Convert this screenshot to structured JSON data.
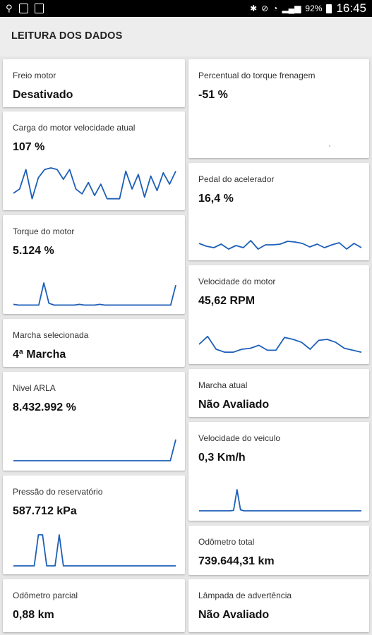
{
  "status_bar": {
    "battery": "92%",
    "time": "16:45"
  },
  "header": {
    "title": "LEITURA DOS DADOS"
  },
  "left_cards": [
    {
      "label": "Freio motor",
      "value": "Desativado"
    },
    {
      "label": "Carga do motor velocidade atual",
      "value": "107 %"
    },
    {
      "label": "Torque do motor",
      "value": "5.124 %"
    },
    {
      "label": "Marcha selecionada",
      "value": "4ª Marcha"
    },
    {
      "label": "Nivel ARLA",
      "value": "8.432.992 %"
    },
    {
      "label": "Pressão do reservatório",
      "value": "587.712 kPa"
    },
    {
      "label": "Odômetro parcial",
      "value": "0,88 km"
    }
  ],
  "right_cards": [
    {
      "label": "Percentual do torque frenagem",
      "value": "-51 %"
    },
    {
      "label": "Pedal do acelerador",
      "value": "16,4 %"
    },
    {
      "label": "Velocidade do motor",
      "value": "45,62 RPM"
    },
    {
      "label": "Marcha atual",
      "value": "Não Avaliado"
    },
    {
      "label": "Velocidade do veiculo",
      "value": "0,3 Km/h"
    },
    {
      "label": "Odômetro total",
      "value": "739.644,31 km"
    },
    {
      "label": "Lâmpada de advertência",
      "value": "Não Avaliado"
    }
  ],
  "colors": {
    "sparkline": "#1d5fb8",
    "appbar": "#ededed",
    "statusbar": "#000000"
  },
  "sparklines": {
    "carga_motor": [
      0.22,
      0.35,
      0.95,
      0.05,
      0.7,
      0.95,
      1.0,
      0.95,
      0.65,
      0.95,
      0.35,
      0.2,
      0.55,
      0.15,
      0.5,
      0.05,
      0.05,
      0.05,
      0.9,
      0.35,
      0.8,
      0.1,
      0.75,
      0.3,
      0.85,
      0.5,
      0.9
    ],
    "torque_motor": [
      0.05,
      0.02,
      0.02,
      0.02,
      0.02,
      0.02,
      1.0,
      0.1,
      0.02,
      0.02,
      0.02,
      0.02,
      0.02,
      0.05,
      0.02,
      0.02,
      0.02,
      0.05,
      0.02,
      0.02,
      0.02,
      0.02,
      0.02,
      0.02,
      0.02,
      0.02,
      0.02,
      0.02,
      0.02,
      0.02,
      0.02,
      0.02,
      0.9
    ],
    "nivel_arla": [
      0,
      0,
      0,
      0,
      0,
      0,
      0,
      0,
      0,
      0,
      0,
      0,
      0,
      0,
      0,
      0,
      0,
      0,
      0,
      0,
      0,
      0,
      0,
      0,
      0,
      0,
      0,
      0,
      0,
      0,
      1
    ],
    "pressao_reservatorio": [
      0,
      0,
      0,
      0,
      0,
      0,
      1,
      1,
      0,
      0,
      0,
      1,
      0,
      0,
      0,
      0,
      0,
      0,
      0,
      0,
      0,
      0,
      0,
      0,
      0,
      0,
      0,
      0,
      0,
      0,
      0,
      0,
      0,
      0,
      0,
      0,
      0,
      0,
      0,
      0
    ],
    "pedal_acelerador": [
      0.6,
      0.4,
      0.3,
      0.55,
      0.2,
      0.45,
      0.3,
      0.8,
      0.2,
      0.5,
      0.5,
      0.55,
      0.75,
      0.7,
      0.6,
      0.35,
      0.55,
      0.3,
      0.5,
      0.65,
      0.2,
      0.6,
      0.3
    ],
    "velocidade_motor": [
      0.5,
      0.9,
      0.25,
      0.1,
      0.1,
      0.25,
      0.3,
      0.45,
      0.2,
      0.2,
      0.85,
      0.75,
      0.6,
      0.25,
      0.7,
      0.75,
      0.6,
      0.3,
      0.2,
      0.1
    ],
    "velocidade_veiculo": [
      0,
      0,
      0,
      0,
      0,
      0,
      0,
      0,
      0,
      0,
      0.02,
      1,
      0.05,
      0,
      0,
      0,
      0,
      0,
      0,
      0,
      0,
      0,
      0,
      0,
      0,
      0,
      0,
      0,
      0,
      0,
      0,
      0,
      0,
      0,
      0,
      0,
      0,
      0,
      0,
      0,
      0,
      0,
      0,
      0,
      0,
      0,
      0,
      0
    ]
  }
}
